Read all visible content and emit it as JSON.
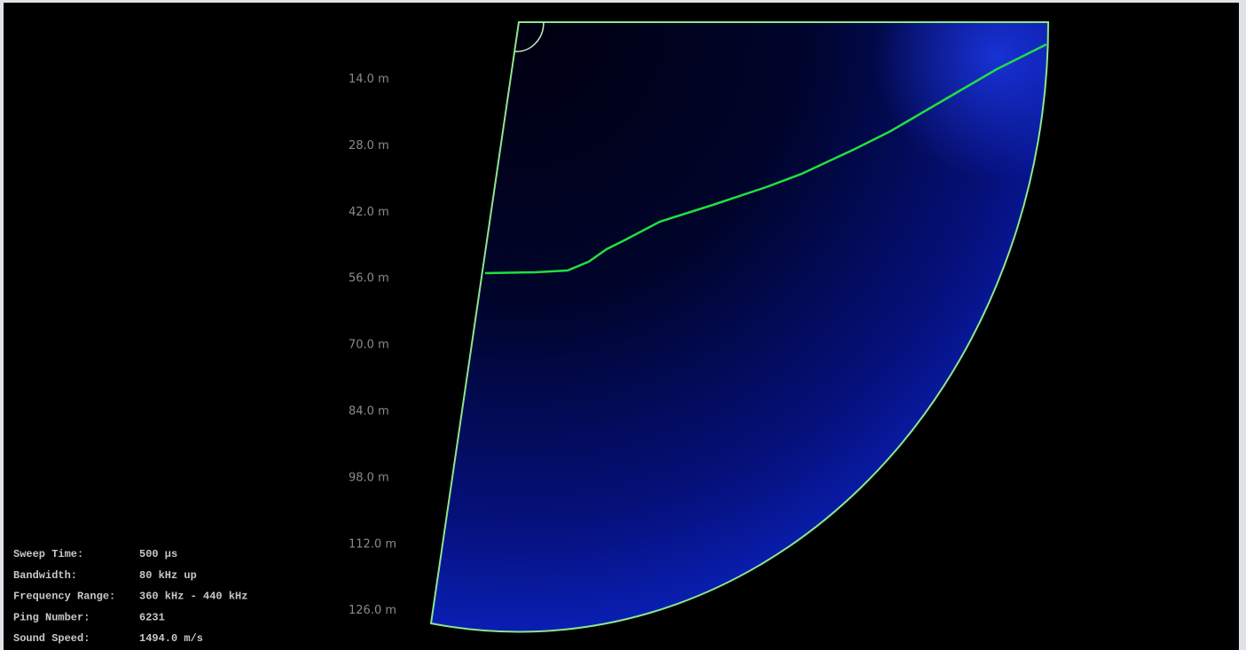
{
  "range_labels": [
    "14.0 m",
    "28.0 m",
    "42.0 m",
    "56.0 m",
    "70.0 m",
    "84.0 m",
    "98.0 m",
    "112.0 m",
    "126.0 m"
  ],
  "info": [
    {
      "label": "Sweep Time:",
      "value": "500 µs"
    },
    {
      "label": "Bandwidth:",
      "value": "80 kHz up"
    },
    {
      "label": "Frequency Range:",
      "value": "360 kHz - 440 kHz"
    },
    {
      "label": "Ping Number:",
      "value": "6231"
    },
    {
      "label": "Sound Speed:",
      "value": "1494.0 m/s"
    }
  ]
}
